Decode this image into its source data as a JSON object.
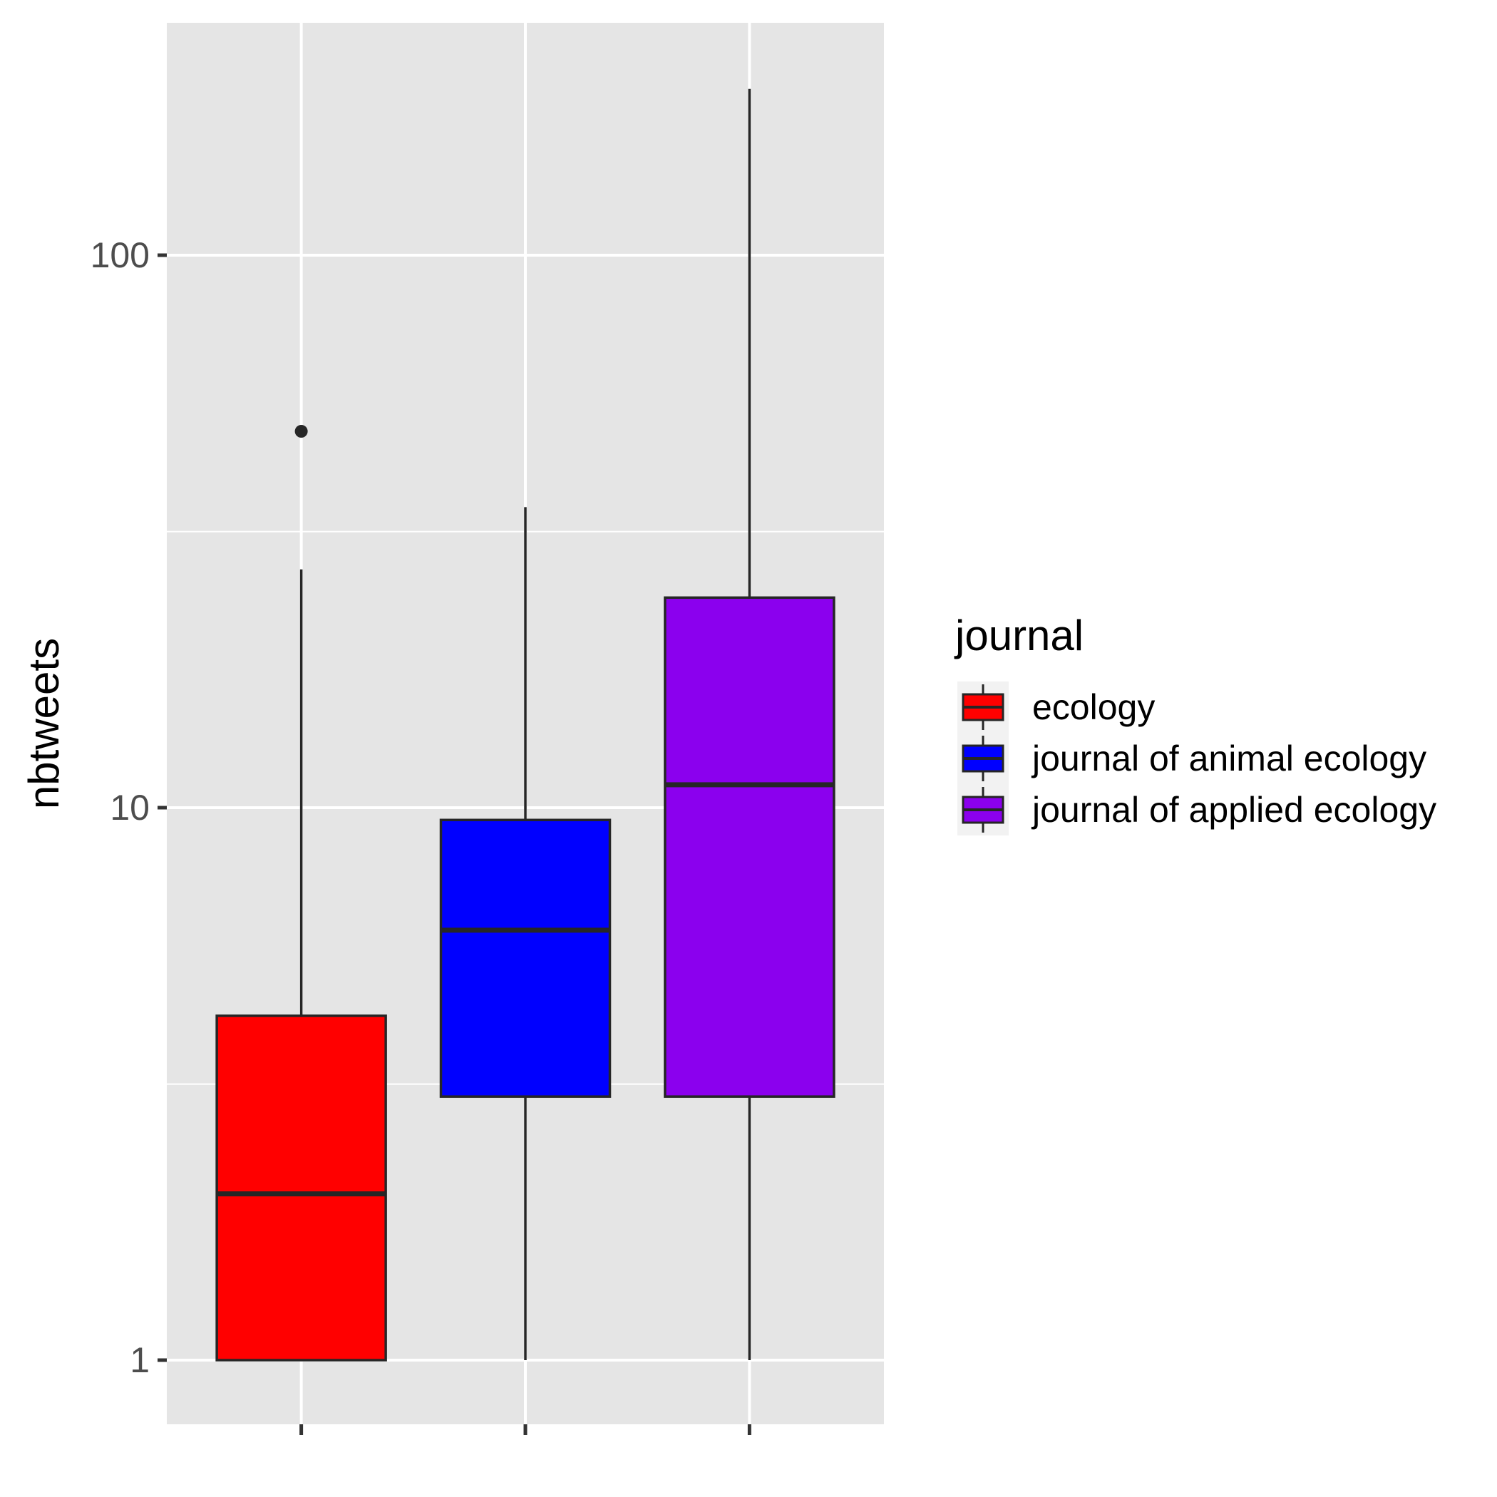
{
  "chart_data": {
    "type": "box",
    "ylabel": "nbtweets",
    "xlabel": "",
    "y_scale": "log10",
    "ylim": [
      0.72,
      240
    ],
    "y_ticks": [
      {
        "value": 1,
        "label": "1"
      },
      {
        "value": 10,
        "label": "10"
      },
      {
        "value": 100,
        "label": "100"
      }
    ],
    "y_minor_gridlines": [
      3.16,
      31.6
    ],
    "x_tick_labels": [
      "",
      "",
      ""
    ],
    "grid": true,
    "legend": {
      "title": "journal",
      "position": "right"
    },
    "series": [
      {
        "name": "ecology",
        "color": "#ff0000",
        "min": 1,
        "q1": 1,
        "median": 2,
        "q3": 4.2,
        "max": 27,
        "outliers": [
          48
        ]
      },
      {
        "name": "journal of animal ecology",
        "color": "#0000ff",
        "min": 1,
        "q1": 3,
        "median": 6,
        "q3": 9.5,
        "max": 35
      },
      {
        "name": "journal of applied ecology",
        "color": "#8b00ee",
        "min": 1,
        "q1": 3,
        "median": 11,
        "q3": 24,
        "max": 200
      }
    ]
  }
}
